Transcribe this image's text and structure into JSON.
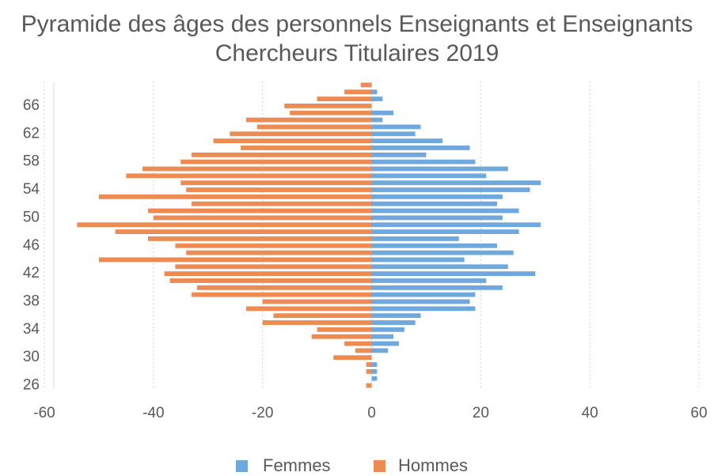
{
  "chart_data": {
    "type": "bar",
    "orientation": "horizontal",
    "title": "Pyramide des âges des personnels Enseignants et Enseignants Chercheurs Titulaires 2019",
    "categories": [
      "26",
      null,
      null,
      null,
      "30",
      null,
      null,
      null,
      "34",
      null,
      null,
      null,
      "38",
      null,
      null,
      null,
      "42",
      null,
      null,
      null,
      "46",
      null,
      null,
      null,
      "50",
      null,
      null,
      null,
      "54",
      null,
      null,
      null,
      "58",
      null,
      null,
      null,
      "62",
      null,
      null,
      null,
      "66",
      null,
      null,
      null
    ],
    "series": [
      {
        "name": "Femmes",
        "color": "#6fa8dc",
        "values": [
          0,
          1,
          1,
          1,
          0,
          3,
          5,
          4,
          6,
          8,
          9,
          19,
          18,
          19,
          24,
          21,
          30,
          25,
          17,
          26,
          23,
          16,
          27,
          31,
          24,
          27,
          23,
          24,
          29,
          31,
          21,
          25,
          19,
          10,
          18,
          13,
          8,
          9,
          2,
          4,
          0,
          2,
          1,
          0
        ]
      },
      {
        "name": "Hommes",
        "color": "#ed8b52",
        "values": [
          -1,
          0,
          -1,
          -1,
          -7,
          -3,
          -5,
          -11,
          -10,
          -20,
          -18,
          -23,
          -20,
          -33,
          -32,
          -37,
          -38,
          -36,
          -50,
          -34,
          -36,
          -41,
          -47,
          -54,
          -40,
          -41,
          -33,
          -50,
          -34,
          -35,
          -45,
          -42,
          -35,
          -33,
          -24,
          -29,
          -26,
          -21,
          -23,
          -15,
          -16,
          -10,
          -5,
          -2
        ]
      }
    ],
    "xlim": [
      -60,
      60
    ],
    "xticks": [
      -60,
      -40,
      -20,
      0,
      20,
      40,
      60
    ],
    "grid": true,
    "legend": "bottom"
  }
}
